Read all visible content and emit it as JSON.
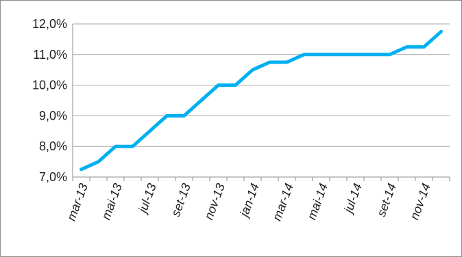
{
  "chart_data": {
    "type": "line",
    "title": "",
    "xlabel": "",
    "ylabel": "",
    "ylim": [
      0.07,
      0.12
    ],
    "y_ticks": [
      "7,0%",
      "8,0%",
      "9,0%",
      "10,0%",
      "11,0%",
      "12,0%"
    ],
    "y_tick_values": [
      0.07,
      0.08,
      0.09,
      0.1,
      0.11,
      0.12
    ],
    "x_tick_labels": [
      "mar-13",
      "mai-13",
      "jul-13",
      "set-13",
      "nov-13",
      "jan-14",
      "mar-14",
      "mai-14",
      "jul-14",
      "set-14",
      "nov-14"
    ],
    "grid": "horizontal",
    "legend": "none",
    "line_color": "#00b0f0",
    "grid_color": "#a6a6a6",
    "series": [
      {
        "x": [
          "mar-13",
          "abr-13",
          "mai-13",
          "jun-13",
          "jul-13",
          "ago-13",
          "set-13",
          "out-13",
          "nov-13",
          "dez-13",
          "jan-14",
          "fev-14",
          "mar-14",
          "abr-14",
          "mai-14",
          "jun-14",
          "jul-14",
          "ago-14",
          "set-14",
          "out-14",
          "nov-14",
          "dez-14"
        ],
        "values": [
          0.0725,
          0.075,
          0.08,
          0.08,
          0.085,
          0.09,
          0.09,
          0.095,
          0.1,
          0.1,
          0.105,
          0.1075,
          0.1075,
          0.11,
          0.11,
          0.11,
          0.11,
          0.11,
          0.11,
          0.1125,
          0.1125,
          0.1175
        ]
      }
    ]
  }
}
